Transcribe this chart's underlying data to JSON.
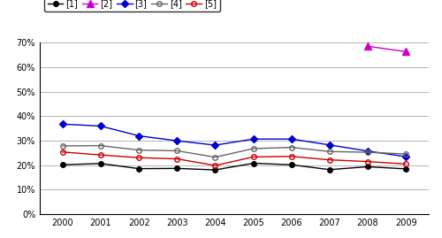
{
  "years": [
    2000,
    2001,
    2002,
    2003,
    2004,
    2005,
    2006,
    2007,
    2008,
    2009
  ],
  "series": {
    "[1]": {
      "color": "#000000",
      "marker": "o",
      "markersize": 4,
      "fillstyle": "full",
      "values": [
        0.202,
        0.207,
        0.186,
        0.187,
        0.181,
        0.208,
        0.202,
        0.182,
        0.194,
        0.185
      ]
    },
    "[2]": {
      "color": "#cc00cc",
      "marker": "^",
      "markersize": 6,
      "fillstyle": "full",
      "values": [
        null,
        null,
        null,
        null,
        null,
        null,
        null,
        null,
        0.686,
        0.664
      ]
    },
    "[3]": {
      "color": "#0000cc",
      "marker": "D",
      "markersize": 4,
      "fillstyle": "full",
      "values": [
        0.368,
        0.36,
        0.32,
        0.3,
        0.282,
        0.307,
        0.307,
        0.283,
        0.258,
        0.235
      ]
    },
    "[4]": {
      "color": "#666666",
      "marker": "o",
      "markersize": 4,
      "fillstyle": "none",
      "values": [
        0.279,
        0.28,
        0.262,
        0.259,
        0.233,
        0.268,
        0.273,
        0.256,
        0.253,
        0.246
      ]
    },
    "[5]": {
      "color": "#cc0000",
      "marker": "o",
      "markersize": 4,
      "fillstyle": "none",
      "values": [
        0.254,
        0.242,
        0.231,
        0.226,
        0.199,
        0.234,
        0.236,
        0.222,
        0.215,
        0.205
      ]
    }
  },
  "ylim": [
    0.0,
    0.7
  ],
  "yticks": [
    0.0,
    0.1,
    0.2,
    0.3,
    0.4,
    0.5,
    0.6,
    0.7
  ],
  "ytick_labels": [
    "0%",
    "10%",
    "20%",
    "30%",
    "40%",
    "50%",
    "60%",
    "70%"
  ],
  "legend_order": [
    "[1]",
    "[2]",
    "[3]",
    "[4]",
    "[5]"
  ],
  "background_color": "#ffffff",
  "grid_color": "#aaaaaa",
  "figsize": [
    5.0,
    2.69
  ],
  "dpi": 100
}
